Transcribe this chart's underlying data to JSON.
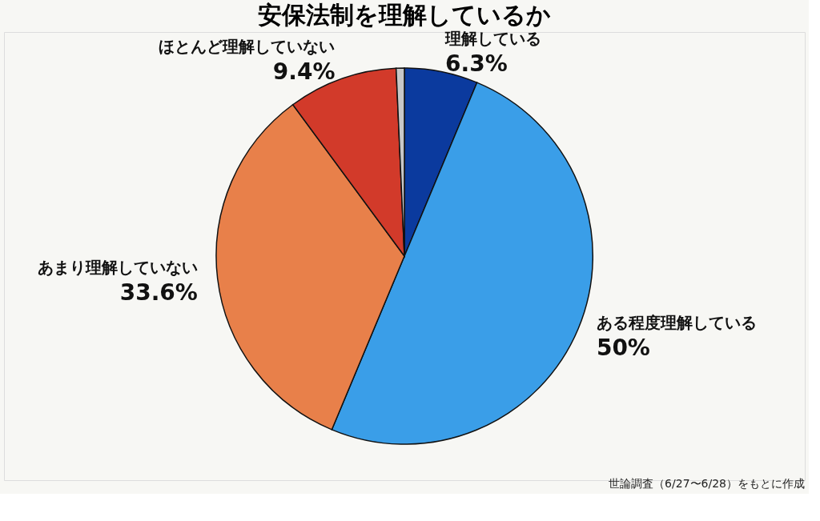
{
  "chart_data": {
    "type": "pie",
    "title": "安保法制を理解しているか",
    "categories": [
      "理解している",
      "ある程度理解している",
      "あまり理解していない",
      "ほとんど理解していない",
      null
    ],
    "values": [
      6.3,
      50,
      33.6,
      9.4,
      0.7
    ],
    "colors": [
      "#0b3a9e",
      "#3a9ee8",
      "#e8804a",
      "#d23a2a",
      "#c8c8c8"
    ],
    "value_labels": [
      "6.3%",
      "50%",
      "33.6%",
      "9.4%",
      null
    ],
    "legend": false,
    "annotations": [
      "世論調査（6/27〜6/28）をもとに作成"
    ]
  }
}
